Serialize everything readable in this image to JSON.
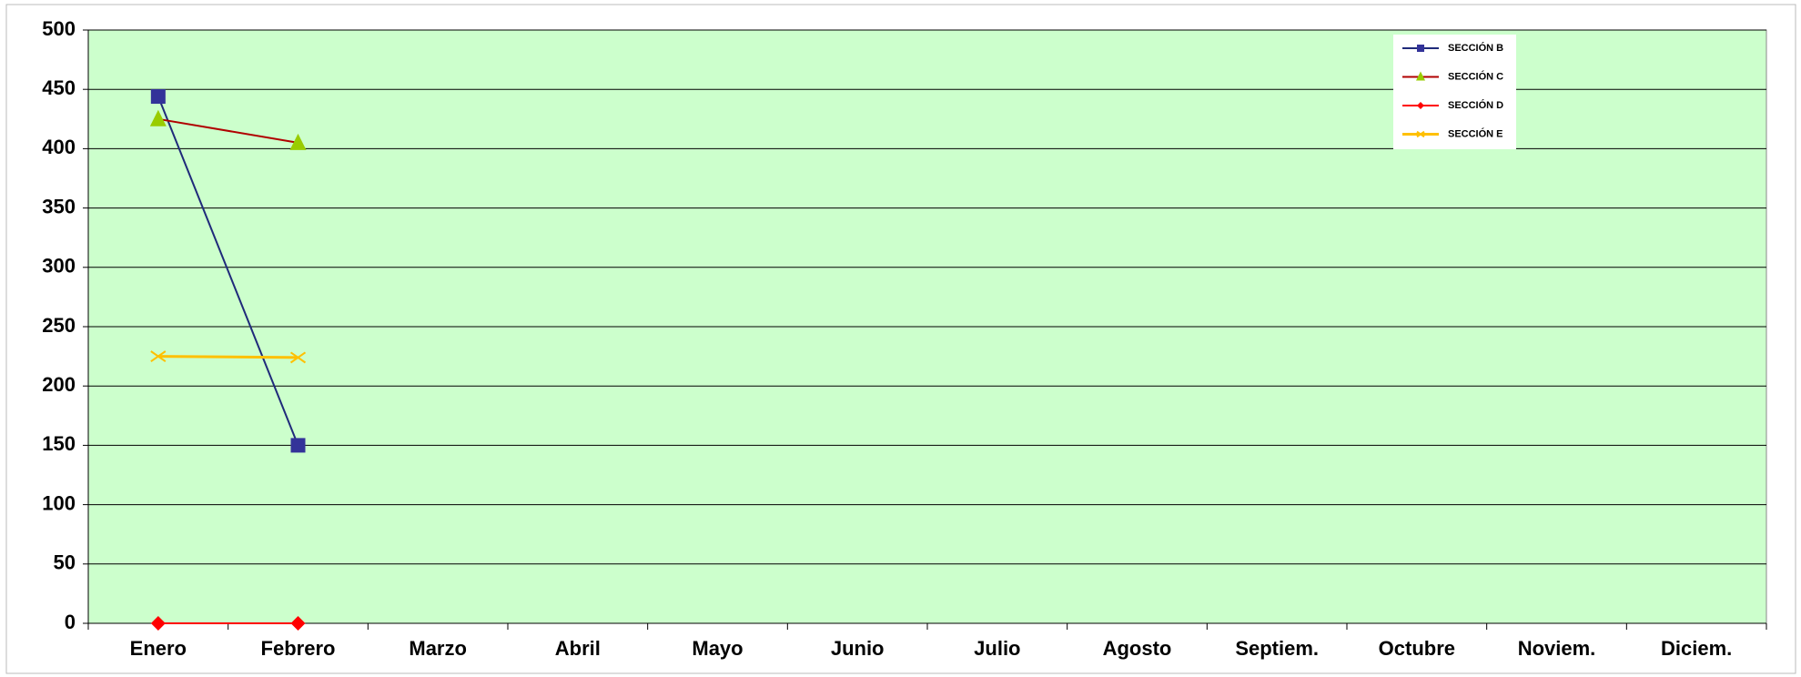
{
  "chart_data": {
    "type": "line",
    "categories": [
      "Enero",
      "Febrero",
      "Marzo",
      "Abril",
      "Mayo",
      "Junio",
      "Julio",
      "Agosto",
      "Septiem.",
      "Octubre",
      "Noviem.",
      "Diciem."
    ],
    "series": [
      {
        "name": "SECCIÓN B",
        "color": "#1f2a7a",
        "marker_color": "#333399",
        "marker": "square",
        "values": [
          444,
          150,
          null,
          null,
          null,
          null,
          null,
          null,
          null,
          null,
          null,
          null
        ]
      },
      {
        "name": "SECCIÓN C",
        "color": "#b00000",
        "marker_color": "#99cc00",
        "marker": "triangle",
        "values": [
          425,
          405,
          null,
          null,
          null,
          null,
          null,
          null,
          null,
          null,
          null,
          null
        ]
      },
      {
        "name": "SECCIÓN D",
        "color": "#ff0000",
        "marker_color": "#ff0000",
        "marker": "diamond",
        "values": [
          0,
          0,
          null,
          null,
          null,
          null,
          null,
          null,
          null,
          null,
          null,
          null
        ]
      },
      {
        "name": "SECCIÓN E",
        "color": "#ffc000",
        "marker_color": "#ffc000",
        "marker": "x",
        "values": [
          225,
          224,
          null,
          null,
          null,
          null,
          null,
          null,
          null,
          null,
          null,
          null
        ]
      }
    ],
    "ylim": [
      0,
      500
    ],
    "yticks": [
      0,
      50,
      100,
      150,
      200,
      250,
      300,
      350,
      400,
      450,
      500
    ],
    "grid": true,
    "legend": "top-right",
    "plot_background": "#ccffcc"
  }
}
